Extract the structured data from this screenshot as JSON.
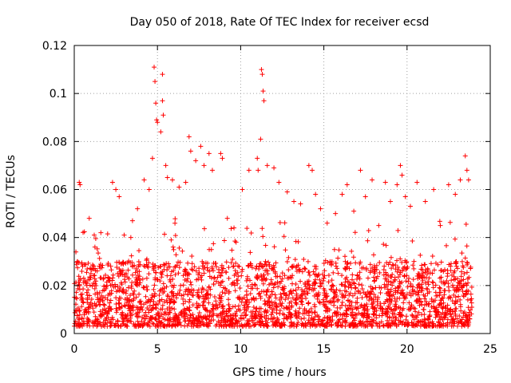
{
  "chart_data": {
    "type": "scatter",
    "title": "Day 050 of 2018, Rate Of TEC Index for receiver ecsd",
    "xlabel": "GPS time / hours",
    "ylabel": "ROTI / TECUs",
    "xlim": [
      0,
      25
    ],
    "ylim": [
      0,
      0.12
    ],
    "grid": true,
    "marker": "+",
    "color": "#ff0000",
    "x_ticks": [
      0,
      5,
      10,
      15,
      20,
      25
    ],
    "x_tick_labels": [
      "0",
      "5",
      "10",
      "15",
      "20",
      "25"
    ],
    "y_ticks": [
      0,
      0.02,
      0.04,
      0.06,
      0.08,
      0.1,
      0.12
    ],
    "y_tick_labels": [
      "0",
      "0.02",
      "0.04",
      "0.06",
      "0.08",
      "0.1",
      "0.12"
    ],
    "data_x_range_hours": [
      0,
      23.9
    ],
    "typical_roti_range": [
      0.003,
      0.03
    ],
    "series": [
      {
        "name": "ROTI",
        "points": [
          [
            0.1,
            0.034
          ],
          [
            0.2,
            0.03
          ],
          [
            0.3,
            0.063
          ],
          [
            0.35,
            0.062
          ],
          [
            0.5,
            0.028
          ],
          [
            0.9,
            0.048
          ],
          [
            1.2,
            0.041
          ],
          [
            1.6,
            0.042
          ],
          [
            2.3,
            0.063
          ],
          [
            2.5,
            0.06
          ],
          [
            2.7,
            0.057
          ],
          [
            3.0,
            0.041
          ],
          [
            3.4,
            0.04
          ],
          [
            3.5,
            0.047
          ],
          [
            3.8,
            0.052
          ],
          [
            4.2,
            0.064
          ],
          [
            4.5,
            0.06
          ],
          [
            4.7,
            0.073
          ],
          [
            4.8,
            0.111
          ],
          [
            4.85,
            0.105
          ],
          [
            4.9,
            0.096
          ],
          [
            4.95,
            0.089
          ],
          [
            5.0,
            0.088
          ],
          [
            5.2,
            0.084
          ],
          [
            5.3,
            0.108
          ],
          [
            5.3,
            0.097
          ],
          [
            5.35,
            0.091
          ],
          [
            5.5,
            0.07
          ],
          [
            5.6,
            0.065
          ],
          [
            5.9,
            0.064
          ],
          [
            6.3,
            0.061
          ],
          [
            6.7,
            0.063
          ],
          [
            6.9,
            0.082
          ],
          [
            7.0,
            0.076
          ],
          [
            7.3,
            0.072
          ],
          [
            7.6,
            0.078
          ],
          [
            7.8,
            0.07
          ],
          [
            8.1,
            0.075
          ],
          [
            8.3,
            0.068
          ],
          [
            8.8,
            0.075
          ],
          [
            8.9,
            0.073
          ],
          [
            9.2,
            0.048
          ],
          [
            9.6,
            0.044
          ],
          [
            10.1,
            0.06
          ],
          [
            10.5,
            0.068
          ],
          [
            11.0,
            0.073
          ],
          [
            11.05,
            0.068
          ],
          [
            11.2,
            0.081
          ],
          [
            11.25,
            0.11
          ],
          [
            11.3,
            0.108
          ],
          [
            11.35,
            0.101
          ],
          [
            11.4,
            0.097
          ],
          [
            11.6,
            0.07
          ],
          [
            12.0,
            0.069
          ],
          [
            12.3,
            0.063
          ],
          [
            12.8,
            0.059
          ],
          [
            13.2,
            0.055
          ],
          [
            13.6,
            0.054
          ],
          [
            14.1,
            0.07
          ],
          [
            14.3,
            0.068
          ],
          [
            14.5,
            0.058
          ],
          [
            14.8,
            0.052
          ],
          [
            15.2,
            0.046
          ],
          [
            15.7,
            0.05
          ],
          [
            16.1,
            0.058
          ],
          [
            16.4,
            0.062
          ],
          [
            16.8,
            0.051
          ],
          [
            17.2,
            0.068
          ],
          [
            17.5,
            0.057
          ],
          [
            17.9,
            0.064
          ],
          [
            18.3,
            0.045
          ],
          [
            18.7,
            0.063
          ],
          [
            19.0,
            0.055
          ],
          [
            19.4,
            0.062
          ],
          [
            19.6,
            0.07
          ],
          [
            19.7,
            0.066
          ],
          [
            19.9,
            0.057
          ],
          [
            20.2,
            0.053
          ],
          [
            20.6,
            0.063
          ],
          [
            21.1,
            0.055
          ],
          [
            21.6,
            0.06
          ],
          [
            22.0,
            0.045
          ],
          [
            22.5,
            0.062
          ],
          [
            22.9,
            0.058
          ],
          [
            23.2,
            0.064
          ],
          [
            23.5,
            0.074
          ],
          [
            23.6,
            0.068
          ],
          [
            23.7,
            0.064
          ]
        ]
      }
    ],
    "density_note": "Dense band of thousands of points between roughly 0.003 and 0.03 across the full day"
  }
}
